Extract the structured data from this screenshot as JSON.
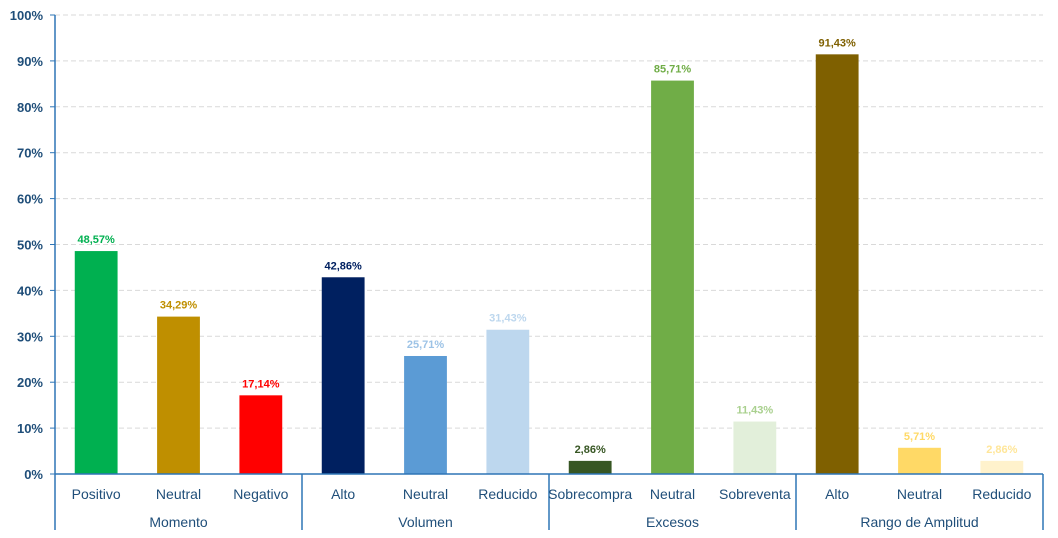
{
  "chart_data": {
    "type": "bar",
    "ylim": [
      0,
      100
    ],
    "yticks": [
      "0%",
      "10%",
      "20%",
      "30%",
      "40%",
      "50%",
      "60%",
      "70%",
      "80%",
      "90%",
      "100%"
    ],
    "grid": true,
    "groups": [
      {
        "name": "Momento",
        "bars": [
          {
            "category": "Positivo",
            "value": 48.57,
            "label": "48,57%",
            "color": "#00b050",
            "label_color": "#00b050"
          },
          {
            "category": "Neutral",
            "value": 34.29,
            "label": "34,29%",
            "color": "#bf8f00",
            "label_color": "#bf8f00"
          },
          {
            "category": "Negativo",
            "value": 17.14,
            "label": "17,14%",
            "color": "#ff0000",
            "label_color": "#ff0000"
          }
        ]
      },
      {
        "name": "Volumen",
        "bars": [
          {
            "category": "Alto",
            "value": 42.86,
            "label": "42,86%",
            "color": "#002060",
            "label_color": "#002060"
          },
          {
            "category": "Neutral",
            "value": 25.71,
            "label": "25,71%",
            "color": "#5b9bd5",
            "label_color": "#9dc3e6"
          },
          {
            "category": "Reducido",
            "value": 31.43,
            "label": "31,43%",
            "color": "#bdd7ee",
            "label_color": "#bdd7ee"
          }
        ]
      },
      {
        "name": "Excesos",
        "bars": [
          {
            "category": "Sobrecompra",
            "value": 2.86,
            "label": "2,86%",
            "color": "#375623",
            "label_color": "#375623"
          },
          {
            "category": "Neutral",
            "value": 85.71,
            "label": "85,71%",
            "color": "#70ad47",
            "label_color": "#70ad47"
          },
          {
            "category": "Sobreventa",
            "value": 11.43,
            "label": "11,43%",
            "color": "#e2efda",
            "label_color": "#a9d08e"
          }
        ]
      },
      {
        "name": "Rango de Amplitud",
        "bars": [
          {
            "category": "Alto",
            "value": 91.43,
            "label": "91,43%",
            "color": "#7f6000",
            "label_color": "#7f6000"
          },
          {
            "category": "Neutral",
            "value": 5.71,
            "label": "5,71%",
            "color": "#ffd966",
            "label_color": "#ffd966"
          },
          {
            "category": "Reducido",
            "value": 2.86,
            "label": "2,86%",
            "color": "#fff2cc",
            "label_color": "#ffe699"
          }
        ]
      }
    ],
    "axis_color": "#2e75b6",
    "grid_color": "#d9d9d9"
  }
}
